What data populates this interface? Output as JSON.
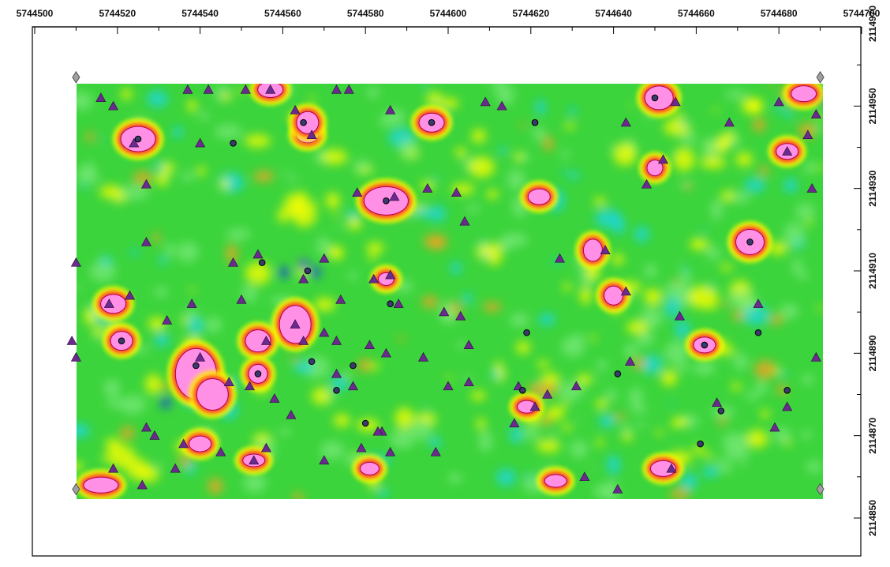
{
  "x_axis": {
    "tick_labels": [
      "5744500",
      "5744520",
      "5744540",
      "5744560",
      "5744580",
      "5744600",
      "5744620",
      "5744640",
      "5744660",
      "5744680",
      "5744700"
    ],
    "values": [
      5744500,
      5744520,
      5744540,
      5744560,
      5744580,
      5744600,
      5744620,
      5744640,
      5744660,
      5744680,
      5744700
    ],
    "minor_step": 10
  },
  "y_axis": {
    "tick_labels": [
      "2114970",
      "2114950",
      "2114930",
      "2114910",
      "2114890",
      "2114870",
      "2114850"
    ],
    "values": [
      2114970,
      2114950,
      2114930,
      2114910,
      2114890,
      2114870,
      2114850
    ],
    "minor_step": 10
  },
  "survey_extent": {
    "x_min": 5744510,
    "x_max": 5744690,
    "y_min": 2114857,
    "y_max": 2114957
  },
  "colors": {
    "background_low": "#3cd43c",
    "mid": "#ffff00",
    "high": "#ff3030",
    "peak": "#ff90e6",
    "low_anomaly": "#1ed7e6",
    "triangle_marker": "#6a2a8e",
    "circle_marker": "#3a3a6e",
    "corner_marker": "#a0a0a0"
  },
  "markers": {
    "triangles": [
      [
        5744516,
        2114952
      ],
      [
        5744519,
        2114950
      ],
      [
        5744524,
        2114941
      ],
      [
        5744527,
        2114931
      ],
      [
        5744537,
        2114954
      ],
      [
        5744542,
        2114954
      ],
      [
        5744551,
        2114954
      ],
      [
        5744557,
        2114954
      ],
      [
        5744563,
        2114949
      ],
      [
        5744573,
        2114954
      ],
      [
        5744576,
        2114954
      ],
      [
        5744567,
        2114943
      ],
      [
        5744540,
        2114941
      ],
      [
        5744586,
        2114949
      ],
      [
        5744609,
        2114951
      ],
      [
        5744613,
        2114950
      ],
      [
        5744602,
        2114929
      ],
      [
        5744595,
        2114930
      ],
      [
        5744578,
        2114929
      ],
      [
        5744587,
        2114928
      ],
      [
        5744510,
        2114912
      ],
      [
        5744527,
        2114917
      ],
      [
        5744518,
        2114902
      ],
      [
        5744523,
        2114904
      ],
      [
        5744548,
        2114912
      ],
      [
        5744554,
        2114914
      ],
      [
        5744565,
        2114908
      ],
      [
        5744570,
        2114913
      ],
      [
        5744574,
        2114903
      ],
      [
        5744582,
        2114908
      ],
      [
        5744586,
        2114909
      ],
      [
        5744588,
        2114902
      ],
      [
        5744604,
        2114922
      ],
      [
        5744627,
        2114913
      ],
      [
        5744638,
        2114915
      ],
      [
        5744643,
        2114946
      ],
      [
        5744643,
        2114905
      ],
      [
        5744648,
        2114931
      ],
      [
        5744652,
        2114937
      ],
      [
        5744655,
        2114951
      ],
      [
        5744668,
        2114946
      ],
      [
        5744680,
        2114951
      ],
      [
        5744682,
        2114939
      ],
      [
        5744687,
        2114943
      ],
      [
        5744689,
        2114948
      ],
      [
        5744688,
        2114930
      ],
      [
        5744538,
        2114902
      ],
      [
        5744550,
        2114903
      ],
      [
        5744532,
        2114898
      ],
      [
        5744556,
        2114893
      ],
      [
        5744573,
        2114893
      ],
      [
        5744581,
        2114892
      ],
      [
        5744599,
        2114900
      ],
      [
        5744603,
        2114899
      ],
      [
        5744563,
        2114897
      ],
      [
        5744570,
        2114895
      ],
      [
        5744565,
        2114893
      ],
      [
        5744509,
        2114893
      ],
      [
        5744510,
        2114889
      ],
      [
        5744540,
        2114889
      ],
      [
        5744547,
        2114883
      ],
      [
        5744552,
        2114882
      ],
      [
        5744558,
        2114879
      ],
      [
        5744562,
        2114875
      ],
      [
        5744573,
        2114885
      ],
      [
        5744577,
        2114882
      ],
      [
        5744585,
        2114890
      ],
      [
        5744594,
        2114889
      ],
      [
        5744605,
        2114892
      ],
      [
        5744600,
        2114882
      ],
      [
        5744605,
        2114883
      ],
      [
        5744617,
        2114882
      ],
      [
        5744624,
        2114880
      ],
      [
        5744631,
        2114882
      ],
      [
        5744644,
        2114888
      ],
      [
        5744656,
        2114899
      ],
      [
        5744675,
        2114902
      ],
      [
        5744689,
        2114889
      ],
      [
        5744665,
        2114878
      ],
      [
        5744682,
        2114877
      ],
      [
        5744679,
        2114872
      ],
      [
        5744654,
        2114862
      ],
      [
        5744621,
        2114877
      ],
      [
        5744616,
        2114873
      ],
      [
        5744586,
        2114866
      ],
      [
        5744579,
        2114867
      ],
      [
        5744584,
        2114871
      ],
      [
        5744597,
        2114866
      ],
      [
        5744583,
        2114871
      ],
      [
        5744570,
        2114864
      ],
      [
        5744553,
        2114864
      ],
      [
        5744556,
        2114867
      ],
      [
        5744545,
        2114866
      ],
      [
        5744536,
        2114868
      ],
      [
        5744527,
        2114872
      ],
      [
        5744529,
        2114870
      ],
      [
        5744526,
        2114858
      ],
      [
        5744534,
        2114862
      ],
      [
        5744519,
        2114862
      ],
      [
        5744633,
        2114860
      ],
      [
        5744641,
        2114857
      ]
    ],
    "circles": [
      [
        5744525,
        2114942
      ],
      [
        5744548,
        2114941
      ],
      [
        5744565,
        2114946
      ],
      [
        5744585,
        2114927
      ],
      [
        5744596,
        2114946
      ],
      [
        5744621,
        2114946
      ],
      [
        5744650,
        2114952
      ],
      [
        5744673,
        2114917
      ],
      [
        5744555,
        2114912
      ],
      [
        5744566,
        2114910
      ],
      [
        5744586,
        2114902
      ],
      [
        5744521,
        2114893
      ],
      [
        5744539,
        2114887
      ],
      [
        5744554,
        2114885
      ],
      [
        5744567,
        2114888
      ],
      [
        5744577,
        2114887
      ],
      [
        5744619,
        2114895
      ],
      [
        5744662,
        2114892
      ],
      [
        5744675,
        2114895
      ],
      [
        5744641,
        2114885
      ],
      [
        5744618,
        2114881
      ],
      [
        5744682,
        2114881
      ],
      [
        5744573,
        2114881
      ],
      [
        5744580,
        2114873
      ],
      [
        5744661,
        2114868
      ],
      [
        5744666,
        2114876
      ]
    ],
    "corners": [
      [
        5744510,
        2114957
      ],
      [
        5744690,
        2114957
      ],
      [
        5744510,
        2114857
      ],
      [
        5744690,
        2114857
      ]
    ]
  }
}
